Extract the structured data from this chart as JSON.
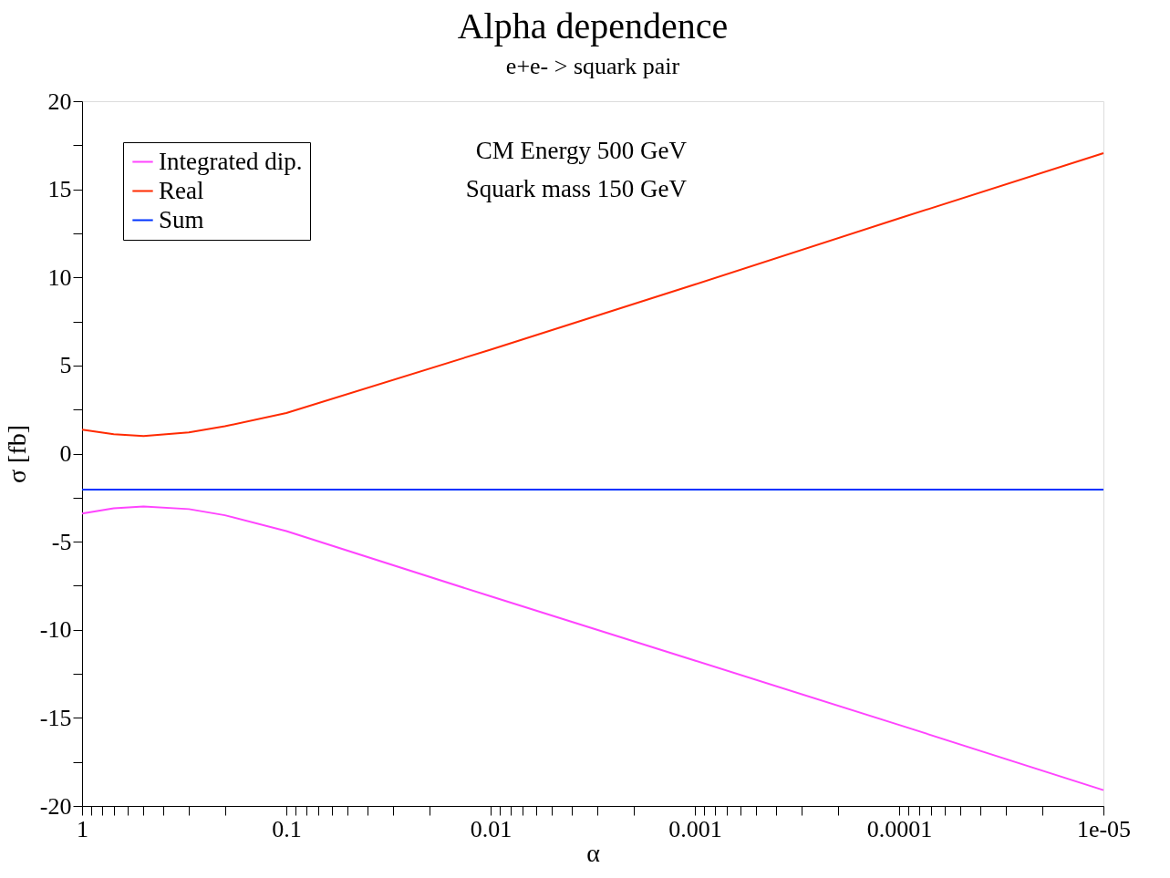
{
  "chart_data": {
    "type": "line",
    "title": "Alpha dependence",
    "subtitle": "e+e- > squark pair",
    "xlabel": "α",
    "ylabel": "σ  [fb]",
    "annotations": [
      "CM Energy   500 GeV",
      "Squark mass 150 GeV"
    ],
    "log": "x",
    "xlim": [
      1,
      1e-05
    ],
    "ylim": [
      -20,
      20
    ],
    "xticks": [
      {
        "value": 1,
        "label": "1"
      },
      {
        "value": 0.9,
        "label": null
      },
      {
        "value": 0.8,
        "label": null
      },
      {
        "value": 0.7,
        "label": null
      },
      {
        "value": 0.6,
        "label": null
      },
      {
        "value": 0.5,
        "label": null
      },
      {
        "value": 0.4,
        "label": null
      },
      {
        "value": 0.3,
        "label": null
      },
      {
        "value": 0.2,
        "label": null
      },
      {
        "value": 0.1,
        "label": "0.1"
      },
      {
        "value": 0.09,
        "label": null
      },
      {
        "value": 0.08,
        "label": null
      },
      {
        "value": 0.07,
        "label": null
      },
      {
        "value": 0.06,
        "label": null
      },
      {
        "value": 0.05,
        "label": null
      },
      {
        "value": 0.04,
        "label": null
      },
      {
        "value": 0.03,
        "label": null
      },
      {
        "value": 0.02,
        "label": null
      },
      {
        "value": 0.01,
        "label": "0.01"
      },
      {
        "value": 0.009,
        "label": null
      },
      {
        "value": 0.008,
        "label": null
      },
      {
        "value": 0.007,
        "label": null
      },
      {
        "value": 0.006,
        "label": null
      },
      {
        "value": 0.005,
        "label": null
      },
      {
        "value": 0.004,
        "label": null
      },
      {
        "value": 0.003,
        "label": null
      },
      {
        "value": 0.002,
        "label": null
      },
      {
        "value": 0.001,
        "label": "0.001"
      },
      {
        "value": 0.0009,
        "label": null
      },
      {
        "value": 0.0008,
        "label": null
      },
      {
        "value": 0.0007,
        "label": null
      },
      {
        "value": 0.0006,
        "label": null
      },
      {
        "value": 0.0005,
        "label": null
      },
      {
        "value": 0.0004,
        "label": null
      },
      {
        "value": 0.0003,
        "label": null
      },
      {
        "value": 0.0002,
        "label": null
      },
      {
        "value": 0.0001,
        "label": "0.0001"
      },
      {
        "value": 9e-05,
        "label": null
      },
      {
        "value": 8e-05,
        "label": null
      },
      {
        "value": 7e-05,
        "label": null
      },
      {
        "value": 6e-05,
        "label": null
      },
      {
        "value": 5e-05,
        "label": null
      },
      {
        "value": 4e-05,
        "label": null
      },
      {
        "value": 3e-05,
        "label": null
      },
      {
        "value": 2e-05,
        "label": null
      },
      {
        "value": 1e-05,
        "label": "1e-05"
      }
    ],
    "yticks": [
      -20,
      {
        "value": -17.5,
        "label": null
      },
      -15,
      {
        "value": -12.5,
        "label": null
      },
      -10,
      {
        "value": -7.5,
        "label": null
      },
      -5,
      {
        "value": -2.5,
        "label": null
      },
      0,
      {
        "value": 2.5,
        "label": null
      },
      5,
      {
        "value": 7.5,
        "label": null
      },
      10,
      {
        "value": 12.5,
        "label": null
      },
      15,
      {
        "value": 17.5,
        "label": null
      },
      20
    ],
    "grid": false,
    "legend": "top left",
    "marker": "none",
    "line_style": "solid",
    "series": [
      {
        "name": "Integrated dip.",
        "color": "#ff44ff",
        "x": [
          1,
          0.7,
          0.5,
          0.3,
          0.2,
          0.1,
          0.01,
          0.001,
          0.0001,
          1e-05
        ],
        "values": [
          -3.4,
          -3.1,
          -3.0,
          -3.15,
          -3.5,
          -4.4,
          -8.1,
          -11.75,
          -15.4,
          -19.1
        ]
      },
      {
        "name": "Real",
        "color": "#ff2a00",
        "x": [
          1,
          0.7,
          0.5,
          0.3,
          0.2,
          0.1,
          0.01,
          0.001,
          0.0001,
          1e-05
        ],
        "values": [
          1.36,
          1.1,
          1.0,
          1.2,
          1.55,
          2.3,
          5.9,
          9.6,
          13.35,
          17.05
        ]
      },
      {
        "name": "Sum",
        "color": "#0033ff",
        "x": [
          1,
          0.7,
          0.5,
          0.3,
          0.2,
          0.1,
          0.01,
          0.001,
          0.0001,
          1e-05
        ],
        "values": [
          -2.05,
          -2.05,
          -2.04,
          -2.04,
          -2.04,
          -2.04,
          -2.04,
          -2.05,
          -2.05,
          -2.05
        ]
      }
    ]
  }
}
